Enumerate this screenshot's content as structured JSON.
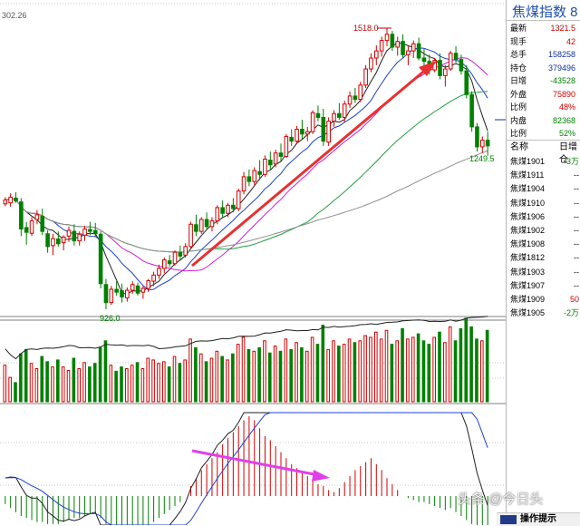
{
  "chart_data": [
    {
      "type": "candlestick",
      "title": "",
      "y_axis_partial_label": "302.26",
      "annotations": {
        "high_label": "1518.0",
        "low_label": "926.0",
        "last_label": "1249.5"
      },
      "overlays": [
        "moving average lines (4)",
        "two red trend arrows"
      ],
      "candles": [
        [
          1148,
          1162,
          1143,
          1156
        ],
        [
          1150,
          1170,
          1142,
          1162
        ],
        [
          1160,
          1172,
          1150,
          1154
        ],
        [
          1152,
          1160,
          1080,
          1095
        ],
        [
          1098,
          1110,
          1062,
          1088
        ],
        [
          1086,
          1120,
          1080,
          1112
        ],
        [
          1115,
          1135,
          1105,
          1125
        ],
        [
          1122,
          1138,
          1082,
          1090
        ],
        [
          1085,
          1092,
          1045,
          1058
        ],
        [
          1060,
          1085,
          1040,
          1075
        ],
        [
          1074,
          1090,
          1058,
          1064
        ],
        [
          1066,
          1082,
          1050,
          1078
        ],
        [
          1080,
          1100,
          1068,
          1092
        ],
        [
          1090,
          1105,
          1060,
          1070
        ],
        [
          1070,
          1090,
          1060,
          1084
        ],
        [
          1082,
          1102,
          1070,
          1095
        ],
        [
          1094,
          1110,
          1082,
          1090
        ],
        [
          1092,
          1108,
          1078,
          1085
        ],
        [
          1084,
          1090,
          970,
          980
        ],
        [
          978,
          990,
          926,
          940
        ],
        [
          940,
          975,
          935,
          968
        ],
        [
          968,
          985,
          955,
          962
        ],
        [
          965,
          980,
          940,
          952
        ],
        [
          950,
          972,
          942,
          966
        ],
        [
          966,
          985,
          958,
          978
        ],
        [
          975,
          982,
          955,
          960
        ],
        [
          962,
          975,
          948,
          970
        ],
        [
          970,
          990,
          962,
          986
        ],
        [
          985,
          1005,
          975,
          998
        ],
        [
          998,
          1020,
          990,
          1012
        ],
        [
          1012,
          1035,
          1002,
          1030
        ],
        [
          1028,
          1040,
          1015,
          1022
        ],
        [
          1022,
          1050,
          1018,
          1046
        ],
        [
          1045,
          1060,
          1030,
          1038
        ],
        [
          1040,
          1065,
          1035,
          1058
        ],
        [
          1058,
          1110,
          1055,
          1105
        ],
        [
          1104,
          1125,
          1080,
          1090
        ],
        [
          1090,
          1120,
          1085,
          1115
        ],
        [
          1115,
          1130,
          1095,
          1100
        ],
        [
          1100,
          1120,
          1090,
          1112
        ],
        [
          1112,
          1145,
          1105,
          1140
        ],
        [
          1140,
          1155,
          1120,
          1128
        ],
        [
          1128,
          1150,
          1120,
          1145
        ],
        [
          1145,
          1160,
          1130,
          1138
        ],
        [
          1138,
          1180,
          1132,
          1175
        ],
        [
          1175,
          1215,
          1168,
          1205
        ],
        [
          1205,
          1220,
          1185,
          1195
        ],
        [
          1195,
          1225,
          1188,
          1218
        ],
        [
          1216,
          1240,
          1198,
          1210
        ],
        [
          1210,
          1250,
          1205,
          1242
        ],
        [
          1240,
          1258,
          1220,
          1230
        ],
        [
          1232,
          1262,
          1225,
          1255
        ],
        [
          1255,
          1275,
          1238,
          1248
        ],
        [
          1248,
          1295,
          1245,
          1290
        ],
        [
          1288,
          1305,
          1270,
          1280
        ],
        [
          1280,
          1312,
          1275,
          1305
        ],
        [
          1305,
          1325,
          1285,
          1295
        ],
        [
          1295,
          1310,
          1280,
          1300
        ],
        [
          1300,
          1345,
          1295,
          1340
        ],
        [
          1338,
          1355,
          1322,
          1330
        ],
        [
          1330,
          1348,
          1270,
          1280
        ],
        [
          1278,
          1330,
          1270,
          1322
        ],
        [
          1322,
          1345,
          1310,
          1338
        ],
        [
          1338,
          1360,
          1325,
          1330
        ],
        [
          1330,
          1365,
          1320,
          1358
        ],
        [
          1358,
          1385,
          1350,
          1375
        ],
        [
          1375,
          1392,
          1360,
          1368
        ],
        [
          1368,
          1405,
          1362,
          1398
        ],
        [
          1398,
          1440,
          1392,
          1432
        ],
        [
          1432,
          1465,
          1425,
          1455
        ],
        [
          1455,
          1482,
          1440,
          1470
        ],
        [
          1470,
          1500,
          1458,
          1492
        ],
        [
          1492,
          1518,
          1480,
          1505
        ],
        [
          1505,
          1512,
          1470,
          1478
        ],
        [
          1478,
          1500,
          1460,
          1490
        ],
        [
          1490,
          1505,
          1455,
          1462
        ],
        [
          1462,
          1480,
          1440,
          1470
        ],
        [
          1470,
          1492,
          1455,
          1485
        ],
        [
          1485,
          1498,
          1450,
          1455
        ],
        [
          1455,
          1475,
          1430,
          1448
        ],
        [
          1448,
          1462,
          1420,
          1430
        ],
        [
          1430,
          1455,
          1425,
          1450
        ],
        [
          1450,
          1465,
          1410,
          1418
        ],
        [
          1418,
          1440,
          1395,
          1432
        ],
        [
          1432,
          1470,
          1428,
          1465
        ],
        [
          1465,
          1480,
          1445,
          1452
        ],
        [
          1452,
          1462,
          1420,
          1428
        ],
        [
          1428,
          1440,
          1370,
          1378
        ],
        [
          1378,
          1385,
          1300,
          1310
        ],
        [
          1310,
          1318,
          1258,
          1268
        ],
        [
          1268,
          1290,
          1255,
          1282
        ],
        [
          1282,
          1300,
          1249.5,
          1270
        ]
      ],
      "volume": [
        42,
        28,
        22,
        55,
        60,
        44,
        38,
        52,
        46,
        40,
        48,
        40,
        36,
        50,
        38,
        45,
        40,
        44,
        62,
        70,
        42,
        35,
        40,
        38,
        42,
        45,
        38,
        50,
        48,
        44,
        46,
        40,
        52,
        44,
        48,
        72,
        62,
        55,
        46,
        50,
        58,
        52,
        48,
        55,
        66,
        74,
        60,
        58,
        62,
        70,
        56,
        64,
        58,
        72,
        60,
        68,
        62,
        58,
        74,
        66,
        88,
        60,
        70,
        64,
        66,
        72,
        68,
        70,
        76,
        74,
        80,
        72,
        82,
        66,
        70,
        84,
        72,
        74,
        78,
        70,
        66,
        74,
        80,
        68,
        86,
        70,
        84,
        96,
        86,
        72,
        70,
        82
      ],
      "macd": [
        -4,
        -6,
        -8,
        -10,
        -11,
        -12,
        -13,
        -13,
        -14,
        -14,
        -14,
        -13,
        -12,
        -11,
        -11,
        -10,
        -9,
        -9,
        -11,
        -14,
        -17,
        -19,
        -20,
        -20,
        -19,
        -18,
        -17,
        -15,
        -13,
        -11,
        -9,
        -7,
        -5,
        -3,
        0,
        5,
        9,
        13,
        16,
        19,
        22,
        26,
        29,
        32,
        35,
        38,
        40,
        38,
        34,
        30,
        28,
        25,
        22,
        19,
        16,
        14,
        12,
        10,
        8,
        6,
        5,
        3,
        2,
        4,
        7,
        10,
        13,
        15,
        17,
        19,
        16,
        13,
        9,
        6,
        3,
        0,
        -1,
        -2,
        -3,
        -3,
        -4,
        -5,
        -6,
        -7,
        -6,
        -8,
        -10,
        -12,
        -14,
        -15,
        -16,
        -17
      ]
    }
  ],
  "side": {
    "title": "焦煤指数 8",
    "quote": [
      {
        "label": "最新",
        "value": "1321.5"
      },
      {
        "label": "现手",
        "value": "42"
      },
      {
        "label": "总手",
        "value": "158258"
      },
      {
        "label": "持仓",
        "value": "379496"
      },
      {
        "label": "日增",
        "value": "-43528"
      },
      {
        "label": "外盘",
        "value": "75890"
      },
      {
        "label": "比例",
        "value": "48%"
      },
      {
        "label": "内盘",
        "value": "82368"
      },
      {
        "label": "比例",
        "value": "52%"
      }
    ],
    "list_header": {
      "name": "名称",
      "change": "日增仓"
    },
    "contracts": [
      {
        "name": "焦煤1901",
        "change": "-3万"
      },
      {
        "name": "焦煤1911",
        "change": "--"
      },
      {
        "name": "焦煤1904",
        "change": "--"
      },
      {
        "name": "焦煤1910",
        "change": "--"
      },
      {
        "name": "焦煤1906",
        "change": "--"
      },
      {
        "name": "焦煤1902",
        "change": "--"
      },
      {
        "name": "焦煤1908",
        "change": "--"
      },
      {
        "name": "焦煤1812",
        "change": "--"
      },
      {
        "name": "焦煤1903",
        "change": "--"
      },
      {
        "name": "焦煤1907",
        "change": "--"
      },
      {
        "name": "焦煤1909",
        "change": "50"
      },
      {
        "name": "焦煤1905",
        "change": "-2万"
      }
    ]
  },
  "tip": {
    "label": "操作提示"
  },
  "watermark": "头条 @今日头"
}
